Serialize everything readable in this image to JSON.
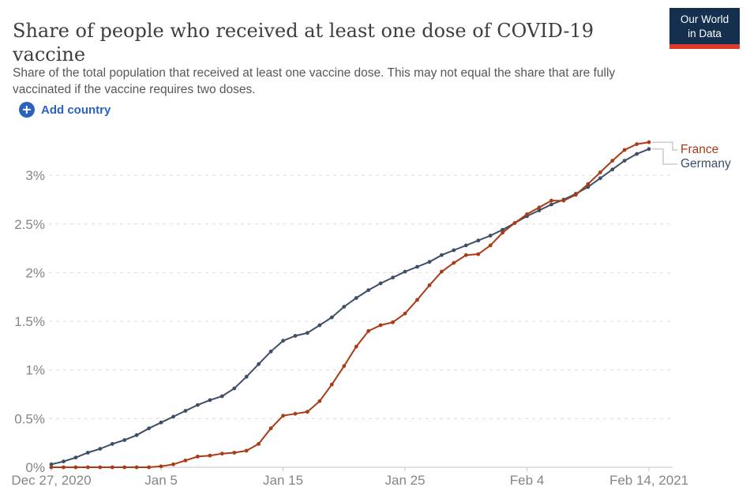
{
  "header": {
    "title": "Share of people who received at least one dose of COVID-19 vaccine",
    "subtitle": "Share of the total population that received at least one vaccine dose. This may not equal the share that are fully vaccinated if the vaccine requires two doses.",
    "logo": {
      "line1": "Our World",
      "line2": "in Data",
      "bg_color": "#14304e",
      "accent_color": "#dc3b2e",
      "text_color": "#ffffff"
    }
  },
  "controls": {
    "add_country": {
      "label": "Add country",
      "color": "#2a62be",
      "icon": "plus-circle-icon"
    }
  },
  "chart_data": {
    "type": "line",
    "title": "Share of people who received at least one dose of COVID-19 vaccine",
    "x_unit": "date",
    "x_start_date": "Dec 27, 2020",
    "x_end_date": "Feb 14, 2021",
    "y_unit": "%",
    "ylim": [
      0,
      3.45
    ],
    "grid": {
      "horizontal_dashed": true,
      "color": "#dcdcdc"
    },
    "axis_color": "#c6c6c6",
    "tick_label_color": "#858585",
    "legend_position": "right",
    "y_ticks": [
      {
        "value": 0,
        "label": "0%"
      },
      {
        "value": 0.5,
        "label": "0.5%"
      },
      {
        "value": 1,
        "label": "1%"
      },
      {
        "value": 1.5,
        "label": "1.5%"
      },
      {
        "value": 2,
        "label": "2%"
      },
      {
        "value": 2.5,
        "label": "2.5%"
      },
      {
        "value": 3,
        "label": "3%"
      }
    ],
    "x_ticks": [
      {
        "day": 0,
        "label": "Dec 27, 2020"
      },
      {
        "day": 9,
        "label": "Jan 5"
      },
      {
        "day": 19,
        "label": "Jan 15"
      },
      {
        "day": 29,
        "label": "Jan 25"
      },
      {
        "day": 39,
        "label": "Feb 4"
      },
      {
        "day": 49,
        "label": "Feb 14, 2021"
      }
    ],
    "series": [
      {
        "name": "France",
        "color": "#ab3a16",
        "values": [
          0.0,
          0.0,
          0.0,
          0.0,
          0.0,
          0.0,
          0.0,
          0.0,
          0.0,
          0.01,
          0.03,
          0.07,
          0.11,
          0.12,
          0.14,
          0.15,
          0.17,
          0.24,
          0.4,
          0.53,
          0.55,
          0.57,
          0.68,
          0.85,
          1.04,
          1.24,
          1.4,
          1.46,
          1.49,
          1.58,
          1.72,
          1.87,
          2.01,
          2.1,
          2.18,
          2.19,
          2.28,
          2.41,
          2.51,
          2.6,
          2.67,
          2.74,
          2.74,
          2.8,
          2.91,
          3.03,
          3.15,
          3.26,
          3.32,
          3.34
        ]
      },
      {
        "name": "Germany",
        "color": "#3d4e66",
        "values": [
          0.03,
          0.06,
          0.1,
          0.15,
          0.19,
          0.24,
          0.28,
          0.33,
          0.4,
          0.46,
          0.52,
          0.58,
          0.64,
          0.69,
          0.73,
          0.81,
          0.93,
          1.06,
          1.19,
          1.3,
          1.35,
          1.38,
          1.46,
          1.54,
          1.65,
          1.74,
          1.82,
          1.89,
          1.95,
          2.01,
          2.06,
          2.11,
          2.18,
          2.23,
          2.28,
          2.33,
          2.38,
          2.44,
          2.51,
          2.58,
          2.64,
          2.7,
          2.75,
          2.81,
          2.88,
          2.97,
          3.06,
          3.15,
          3.22,
          3.27
        ]
      }
    ]
  }
}
